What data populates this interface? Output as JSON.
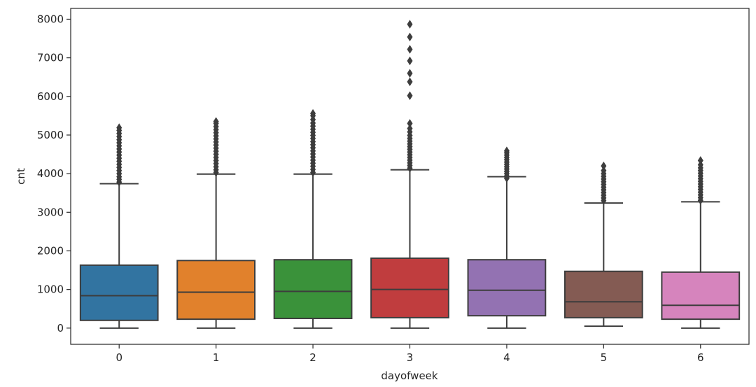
{
  "chart_data": {
    "type": "box",
    "xlabel": "dayofweek",
    "ylabel": "cnt",
    "ylim": [
      -420,
      8280
    ],
    "yticks": [
      0,
      1000,
      2000,
      3000,
      4000,
      5000,
      6000,
      7000,
      8000
    ],
    "grid": false,
    "legend": "none",
    "categories": [
      "0",
      "1",
      "2",
      "3",
      "4",
      "5",
      "6"
    ],
    "colors": [
      "#3274a1",
      "#e1812c",
      "#3a923a",
      "#c03d3e",
      "#9372b2",
      "#845b53",
      "#d684bd"
    ],
    "boxes": [
      {
        "whisker_low": 0,
        "q1": 200,
        "median": 840,
        "q3": 1630,
        "whisker_high": 3740,
        "outliers": [
          3780,
          3850,
          3920,
          4000,
          4080,
          4160,
          4240,
          4320,
          4400,
          4480,
          4560,
          4640,
          4720,
          4800,
          4880,
          4960,
          5040,
          5120,
          5190
        ]
      },
      {
        "whisker_low": 0,
        "q1": 230,
        "median": 930,
        "q3": 1750,
        "whisker_high": 3990,
        "outliers": [
          4030,
          4100,
          4180,
          4260,
          4340,
          4420,
          4500,
          4580,
          4660,
          4740,
          4820,
          4900,
          4980,
          5060,
          5140,
          5220,
          5300,
          5350
        ]
      },
      {
        "whisker_low": 0,
        "q1": 250,
        "median": 950,
        "q3": 1770,
        "whisker_high": 3990,
        "outliers": [
          4030,
          4110,
          4190,
          4270,
          4350,
          4430,
          4510,
          4590,
          4670,
          4750,
          4830,
          4910,
          4990,
          5070,
          5150,
          5230,
          5310,
          5400,
          5500,
          5560
        ]
      },
      {
        "whisker_low": 0,
        "q1": 270,
        "median": 1000,
        "q3": 1810,
        "whisker_high": 4100,
        "outliers": [
          4140,
          4210,
          4280,
          4350,
          4420,
          4490,
          4560,
          4630,
          4700,
          4770,
          4840,
          4910,
          4990,
          5080,
          5170,
          5300,
          6020,
          6380,
          6600,
          6920,
          7220,
          7540,
          7870
        ]
      },
      {
        "whisker_low": 0,
        "q1": 320,
        "median": 980,
        "q3": 1770,
        "whisker_high": 3920,
        "outliers": [
          3880,
          3940,
          4000,
          4060,
          4120,
          4180,
          4240,
          4300,
          4360,
          4420,
          4480,
          4540,
          4590
        ]
      },
      {
        "whisker_low": 50,
        "q1": 270,
        "median": 680,
        "q3": 1470,
        "whisker_high": 3240,
        "outliers": [
          3300,
          3370,
          3440,
          3510,
          3580,
          3650,
          3720,
          3790,
          3860,
          3930,
          4000,
          4080,
          4200
        ]
      },
      {
        "whisker_low": 0,
        "q1": 230,
        "median": 590,
        "q3": 1450,
        "whisker_high": 3270,
        "outliers": [
          3310,
          3380,
          3450,
          3520,
          3590,
          3660,
          3730,
          3800,
          3870,
          3940,
          4010,
          4080,
          4150,
          4230,
          4340
        ]
      }
    ]
  }
}
